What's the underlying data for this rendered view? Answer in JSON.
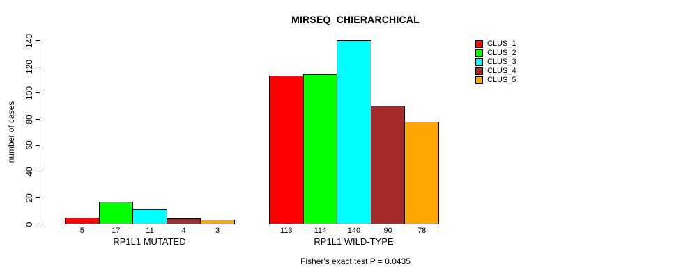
{
  "title": "MIRSEQ_CHIERARCHICAL",
  "y_axis_label": "number of cases",
  "caption": "Fisher's exact test P = 0.0435",
  "chart_data": {
    "type": "bar",
    "title": "MIRSEQ_CHIERARCHICAL",
    "xlabel": "",
    "ylabel": "number of cases",
    "ylim": [
      0,
      140
    ],
    "yticks": [
      0,
      20,
      40,
      60,
      80,
      100,
      120,
      140
    ],
    "grid": false,
    "bar_value_labels": true,
    "categories": [
      "RP1L1 MUTATED",
      "RP1L1 WILD-TYPE"
    ],
    "groups": [
      {
        "label": "RP1L1 MUTATED",
        "values": [
          5,
          17,
          11,
          4,
          3
        ]
      },
      {
        "label": "RP1L1 WILD-TYPE",
        "values": [
          113,
          114,
          140,
          90,
          78
        ]
      }
    ],
    "series": [
      {
        "name": "CLUS_1",
        "color": "#FF0000",
        "values": [
          5,
          113
        ]
      },
      {
        "name": "CLUS_2",
        "color": "#00FF00",
        "values": [
          17,
          114
        ]
      },
      {
        "name": "CLUS_3",
        "color": "#00FFFF",
        "values": [
          11,
          140
        ]
      },
      {
        "name": "CLUS_4",
        "color": "#A52A2A",
        "values": [
          4,
          90
        ]
      },
      {
        "name": "CLUS_5",
        "color": "#FFA500",
        "values": [
          3,
          78
        ]
      }
    ],
    "legend": {
      "position": "top-right",
      "entries": [
        "CLUS_1",
        "CLUS_2",
        "CLUS_3",
        "CLUS_4",
        "CLUS_5"
      ]
    },
    "annotation": "Fisher's exact test P = 0.0435"
  }
}
